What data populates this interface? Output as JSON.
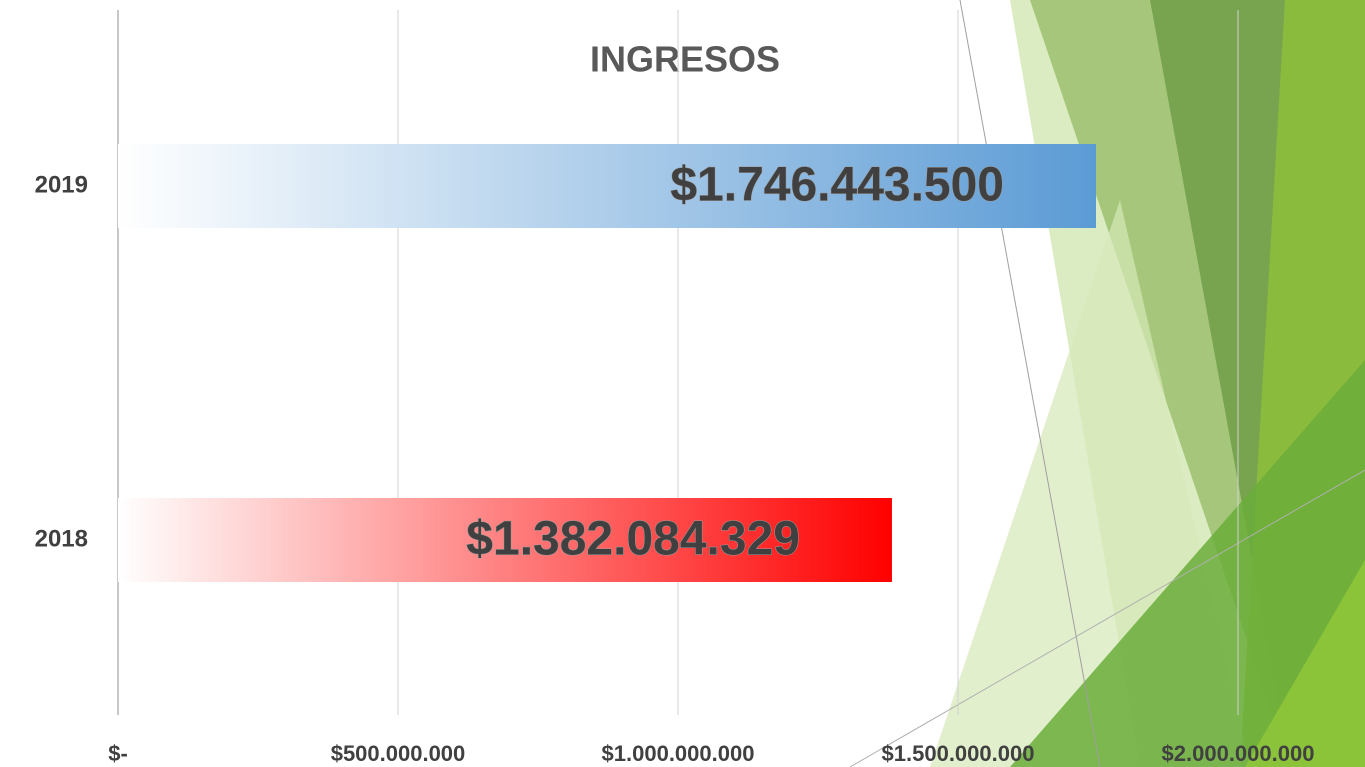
{
  "chart_data": {
    "type": "bar",
    "orientation": "horizontal",
    "title": "INGRESOS",
    "categories": [
      "2019",
      "2018"
    ],
    "values": [
      1746443500,
      1382084329
    ],
    "value_labels": [
      "$1.746.443.500",
      "$1.382.084.329"
    ],
    "colors": [
      "#5b9bd5",
      "#ff0000"
    ],
    "xlim": [
      0,
      2000000000
    ],
    "xticks": [
      {
        "value": 0,
        "label": "$-"
      },
      {
        "value": 500000000,
        "label": "$500.000.000"
      },
      {
        "value": 1000000000,
        "label": "$1.000.000.000"
      },
      {
        "value": 1500000000,
        "label": "$1.500.000.000"
      },
      {
        "value": 2000000000,
        "label": "$2.000.000.000"
      }
    ],
    "grid": true
  }
}
